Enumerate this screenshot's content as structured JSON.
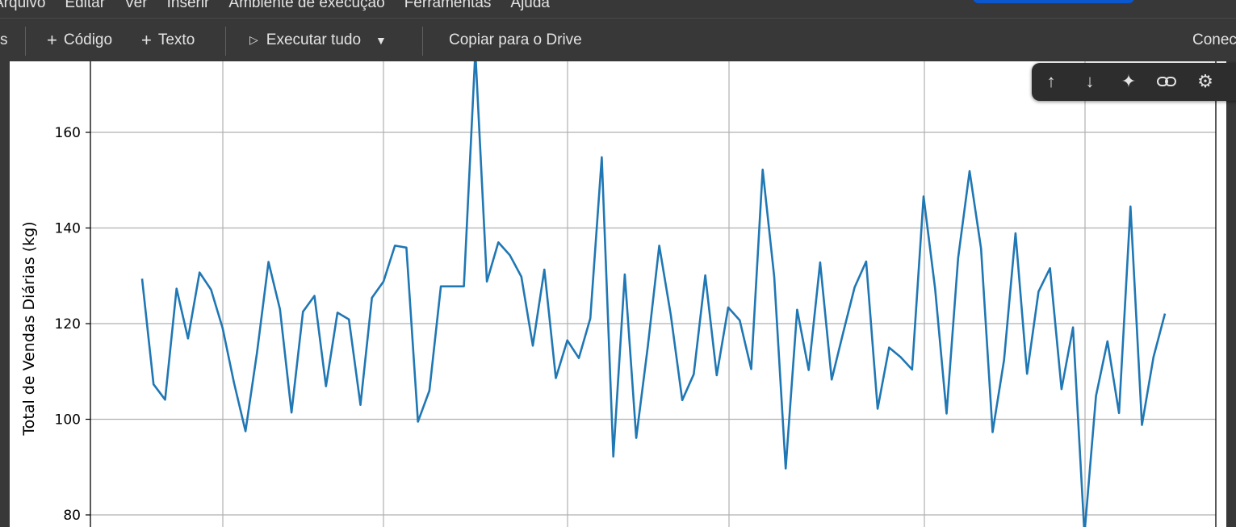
{
  "menubar": {
    "items": [
      "Arquivo",
      "Editar",
      "Ver",
      "Inserir",
      "Ambiente de execução",
      "Ferramentas",
      "Ajuda"
    ]
  },
  "toolbar": {
    "left_cut": "s",
    "code_label": "Código",
    "text_label": "Texto",
    "run_all_label": "Executar tudo",
    "copy_drive_label": "Copiar para o Drive",
    "connect_label": "Conec"
  },
  "cell_toolbar": {
    "icons": [
      "arrow-up-icon",
      "arrow-down-icon",
      "sparkle-icon",
      "link-icon",
      "gear-icon",
      "more-icon"
    ]
  },
  "colors": {
    "line": "#1f77b4",
    "grid": "#b0b0b0",
    "background": "#ffffff"
  },
  "chart_data": {
    "type": "line",
    "title": "",
    "xlabel": "",
    "ylabel": "Total de Vendas Diárias (kg)",
    "yticks": [
      80,
      100,
      120,
      140,
      160
    ],
    "ylim": [
      79,
      175
    ],
    "grid": true,
    "series": [
      {
        "values": [
          129.4,
          107.3,
          104.1,
          127.3,
          116.9,
          130.7,
          127.1,
          119.1,
          107.6,
          97.5,
          114.0,
          132.9,
          123.0,
          101.4,
          122.5,
          125.8,
          106.9,
          122.3,
          120.9,
          103.0,
          125.4,
          128.8,
          136.3,
          135.9,
          99.5,
          106.0,
          127.8,
          127.8,
          127.8,
          177.0,
          128.8,
          137.0,
          134.3,
          129.8,
          115.4,
          131.3,
          108.6,
          116.5,
          112.8,
          121.1,
          154.8,
          92.2,
          130.3,
          96.1,
          115.2,
          136.3,
          121.8,
          104.0,
          109.4,
          130.1,
          109.2,
          123.4,
          120.7,
          110.5,
          152.2,
          129.8,
          89.7,
          122.9,
          110.3,
          132.8,
          108.3,
          118.1,
          127.6,
          133.0,
          102.2,
          115.0,
          113.0,
          110.4,
          146.6,
          127.3,
          101.2,
          133.7,
          151.9,
          135.7,
          97.3,
          112.4,
          138.9,
          109.5,
          126.7,
          131.6,
          106.3,
          119.2,
          76.0,
          104.9,
          116.3,
          101.3,
          144.5,
          98.8,
          113.0,
          122.1
        ]
      }
    ]
  }
}
